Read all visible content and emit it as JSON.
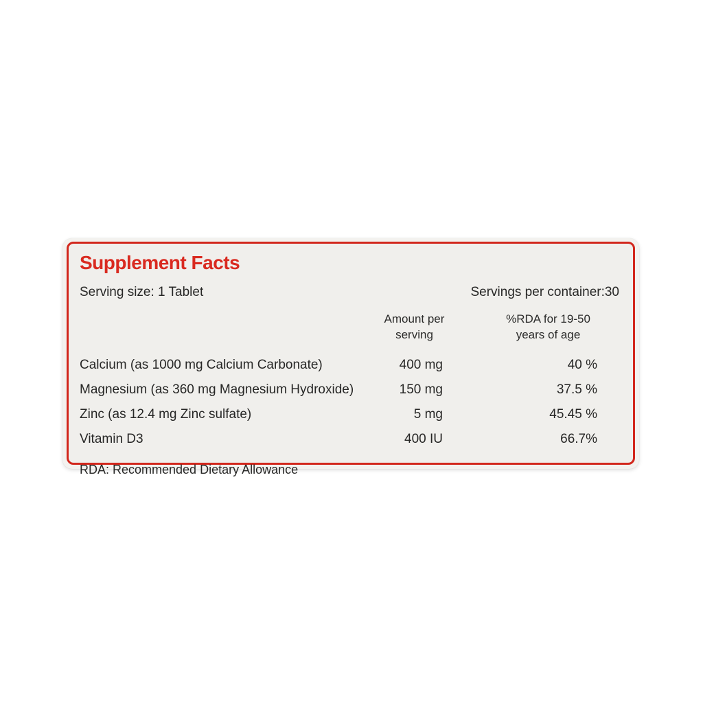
{
  "label": {
    "title": "Supplement Facts",
    "serving_size": "Serving size: 1 Tablet",
    "servings_per_container": "Servings per container:30",
    "columns": {
      "amount_header": "Amount per\nserving",
      "rda_header": "%RDA for 19-50\nyears of age"
    },
    "rows": [
      {
        "name": "Calcium (as 1000 mg Calcium Carbonate)",
        "amount": "400 mg",
        "rda": "40 %"
      },
      {
        "name": "Magnesium (as 360 mg Magnesium Hydroxide)",
        "amount": "150 mg",
        "rda": "37.5 %"
      },
      {
        "name": "Zinc (as 12.4 mg Zinc sulfate)",
        "amount": "5 mg",
        "rda": "45.45 %"
      },
      {
        "name": "Vitamin D3",
        "amount": "400 IU",
        "rda": "66.7%"
      }
    ],
    "footnote": "RDA: Recommended Dietary Allowance",
    "colors": {
      "accent_red": "#d2271d",
      "title_red": "#d92a20",
      "panel_background": "#f0efec"
    }
  }
}
